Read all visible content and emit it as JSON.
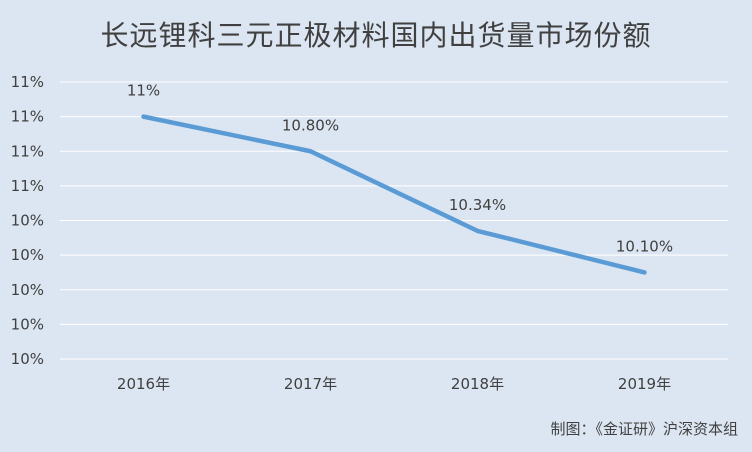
{
  "chart_data": {
    "type": "line",
    "title": "长远锂科三元正极材料国内出货量市场份额",
    "source": "制图：《金证研》沪深资本组",
    "categories": [
      "2016年",
      "2017年",
      "2018年",
      "2019年"
    ],
    "series": [
      {
        "values": [
          11.0,
          10.8,
          10.34,
          10.1
        ],
        "data_labels": [
          "11%",
          "10.80%",
          "10.34%",
          "10.10%"
        ],
        "color": "#5b9bd5"
      }
    ],
    "ylim": [
      9.6,
      11.2
    ],
    "yticks": [
      9.6,
      9.8,
      10.0,
      10.2,
      10.4,
      10.6,
      10.8,
      11.0,
      11.2
    ],
    "ytick_labels": [
      "10%",
      "10%",
      "10%",
      "10%",
      "10%",
      "11%",
      "11%",
      "11%",
      "11%"
    ],
    "grid": true,
    "gridline_color": "#ffffff",
    "legend": false
  }
}
